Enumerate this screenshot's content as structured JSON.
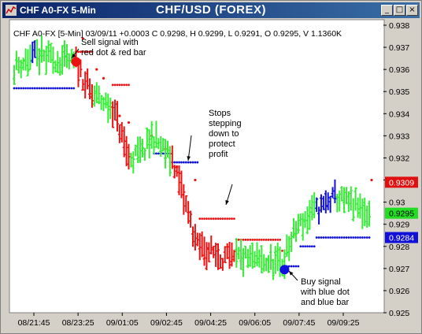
{
  "window": {
    "title_left": "CHF A0-FX 5-Min",
    "title_center": "CHF/USD (FOREX)",
    "btn_min": "_",
    "btn_max": "□",
    "btn_close": "×"
  },
  "colors": {
    "up": "#33ee33",
    "down": "#ee1111",
    "blue": "#1111dd",
    "plot_bg": "#ffffff",
    "title_bar": "#0a246a"
  },
  "chart_data": {
    "type": "bar",
    "info_line": "CHF A0-FX [5-Min] 03/09/11 +0.0003 C 0.9298, H 0.9299, L 0.9291, O 0.9295, V 1.1360K",
    "ylim": [
      0.925,
      0.938
    ],
    "y_ticks": [
      "0.938",
      "0.937",
      "0.936",
      "0.935",
      "0.934",
      "0.933",
      "0.932",
      "0.931",
      "0.93",
      "0.929",
      "0.928",
      "0.927",
      "0.926",
      "0.925"
    ],
    "x_ticks": [
      "08/21:45",
      "08/23:25",
      "09/01:05",
      "09/02:45",
      "09/04:25",
      "09/06:05",
      "09/07:45",
      "09/09:25"
    ],
    "price_labels": [
      {
        "value": 0.9309,
        "text": "0.9309",
        "color": "red"
      },
      {
        "value": 0.9295,
        "text": "0.9295",
        "color": "green"
      },
      {
        "value": 0.9284,
        "text": "0.9284",
        "color": "blue"
      }
    ],
    "annotations": [
      {
        "text": "Sell signal with\nred dot & red bar",
        "bar": 27,
        "price": 0.93635,
        "color": "red"
      },
      {
        "text": "Stops\nstepping\ndown to\nprotect\nprofit",
        "bar": 85,
        "price": 0.92955
      },
      {
        "text": "Buy signal\nwith blue dot\nand blue bar",
        "bar": 118,
        "price": 0.92695,
        "color": "blue"
      }
    ],
    "segments": [
      {
        "from": 0,
        "to": 7,
        "start": 0.9361,
        "end": 0.9365,
        "color": "green",
        "stop": 0.93515
      },
      {
        "from": 8,
        "to": 9,
        "start": 0.9365,
        "end": 0.9366,
        "color": "blue",
        "stop": 0.93515
      },
      {
        "from": 10,
        "to": 26,
        "start": 0.9366,
        "end": 0.9363,
        "color": "green",
        "stop": 0.93515
      },
      {
        "from": 27,
        "to": 34,
        "start": 0.9363,
        "end": 0.9348,
        "color": "red",
        "stop": 0.9368
      },
      {
        "from": 35,
        "to": 42,
        "start": 0.9348,
        "end": 0.9343,
        "color": "green"
      },
      {
        "from": 43,
        "to": 50,
        "start": 0.9343,
        "end": 0.932,
        "color": "red",
        "stop": 0.9353
      },
      {
        "from": 51,
        "to": 55,
        "start": 0.932,
        "end": 0.9322,
        "color": "green"
      },
      {
        "from": 56,
        "to": 60,
        "start": 0.9322,
        "end": 0.9329,
        "color": "green"
      },
      {
        "from": 61,
        "to": 68,
        "start": 0.9329,
        "end": 0.932,
        "color": "green",
        "stop": 0.9322
      },
      {
        "from": 69,
        "to": 80,
        "start": 0.932,
        "end": 0.928,
        "color": "red",
        "stop": 0.9318
      },
      {
        "from": 81,
        "to": 96,
        "start": 0.928,
        "end": 0.9273,
        "color": "red",
        "stop": 0.92925
      },
      {
        "from": 97,
        "to": 116,
        "start": 0.9275,
        "end": 0.9272,
        "color": "green",
        "stop": 0.9283
      },
      {
        "from": 117,
        "to": 117,
        "start": 0.9272,
        "end": 0.9274,
        "color": "green",
        "stop": 0.9278
      },
      {
        "from": 118,
        "to": 124,
        "start": 0.9275,
        "end": 0.929,
        "color": "green",
        "stop": 0.9271
      },
      {
        "from": 125,
        "to": 131,
        "start": 0.929,
        "end": 0.9296,
        "color": "green",
        "stop": 0.928
      },
      {
        "from": 132,
        "to": 140,
        "start": 0.9296,
        "end": 0.9302,
        "color": "blue",
        "stop": 0.9284
      },
      {
        "from": 141,
        "to": 155,
        "start": 0.9302,
        "end": 0.9295,
        "color": "green",
        "stop": 0.9284
      }
    ],
    "extra_stops": [
      {
        "bar": 30,
        "price": 0.9374
      },
      {
        "bar": 36,
        "price": 0.936
      },
      {
        "bar": 39,
        "price": 0.9356
      },
      {
        "bar": 46,
        "price": 0.9339
      },
      {
        "bar": 50,
        "price": 0.9336
      },
      {
        "bar": 60,
        "price": 0.933
      },
      {
        "bar": 66,
        "price": 0.9324
      },
      {
        "bar": 71,
        "price": 0.9316
      },
      {
        "bar": 79,
        "price": 0.931
      },
      {
        "bar": 156,
        "price": 0.931
      }
    ],
    "signal_dots": [
      {
        "bar": 27,
        "price": 0.93635,
        "color": "red"
      },
      {
        "bar": 118,
        "price": 0.92695,
        "color": "blue"
      }
    ]
  }
}
